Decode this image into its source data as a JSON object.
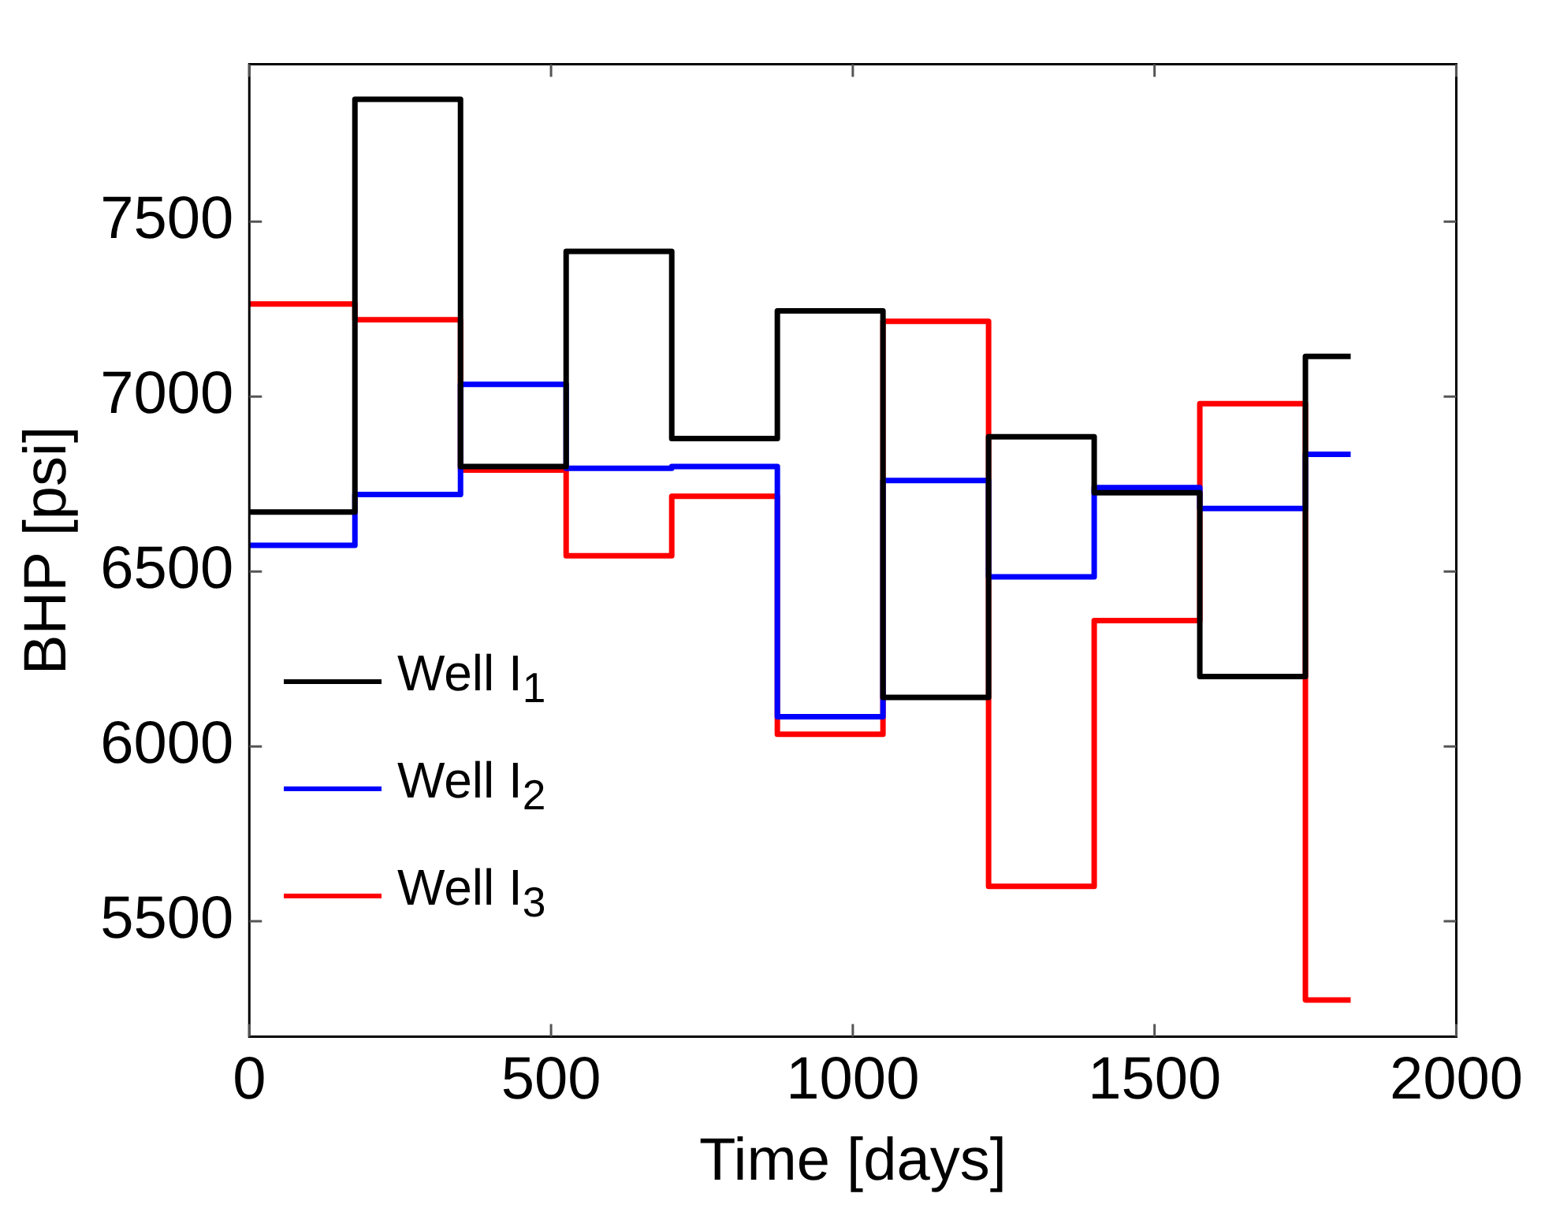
{
  "chart_data": {
    "type": "step",
    "xlabel": "Time [days]",
    "ylabel": "BHP [psi]",
    "x": [
      0,
      175,
      350,
      525,
      700,
      875,
      1050,
      1225,
      1400,
      1575,
      1750,
      1825
    ],
    "series": [
      {
        "name": "Well I$_{1}$",
        "color": "#000000",
        "values": [
          6670,
          7850,
          6800,
          7415,
          6880,
          7245,
          6140,
          6885,
          6725,
          6200,
          7115,
          7115
        ]
      },
      {
        "name": "Well I$_{2}$",
        "color": "#0000ff",
        "values": [
          6575,
          6720,
          7035,
          6795,
          6800,
          6085,
          6760,
          6485,
          6740,
          6680,
          6835,
          6835
        ]
      },
      {
        "name": "Well I$_{3}$",
        "color": "#ff0000",
        "values": [
          7265,
          7220,
          6790,
          6545,
          6715,
          6035,
          7215,
          5600,
          6360,
          6980,
          5275,
          5275
        ]
      }
    ],
    "xlim": [
      0,
      2000
    ],
    "xticks": [
      0,
      500,
      1000,
      1500,
      2000
    ],
    "ylim": [
      5170,
      7950
    ],
    "yticks": [
      5500,
      6000,
      6500,
      7000,
      7500
    ],
    "grid": false,
    "legend": "left",
    "marker": "none",
    "line_style": "solid"
  }
}
